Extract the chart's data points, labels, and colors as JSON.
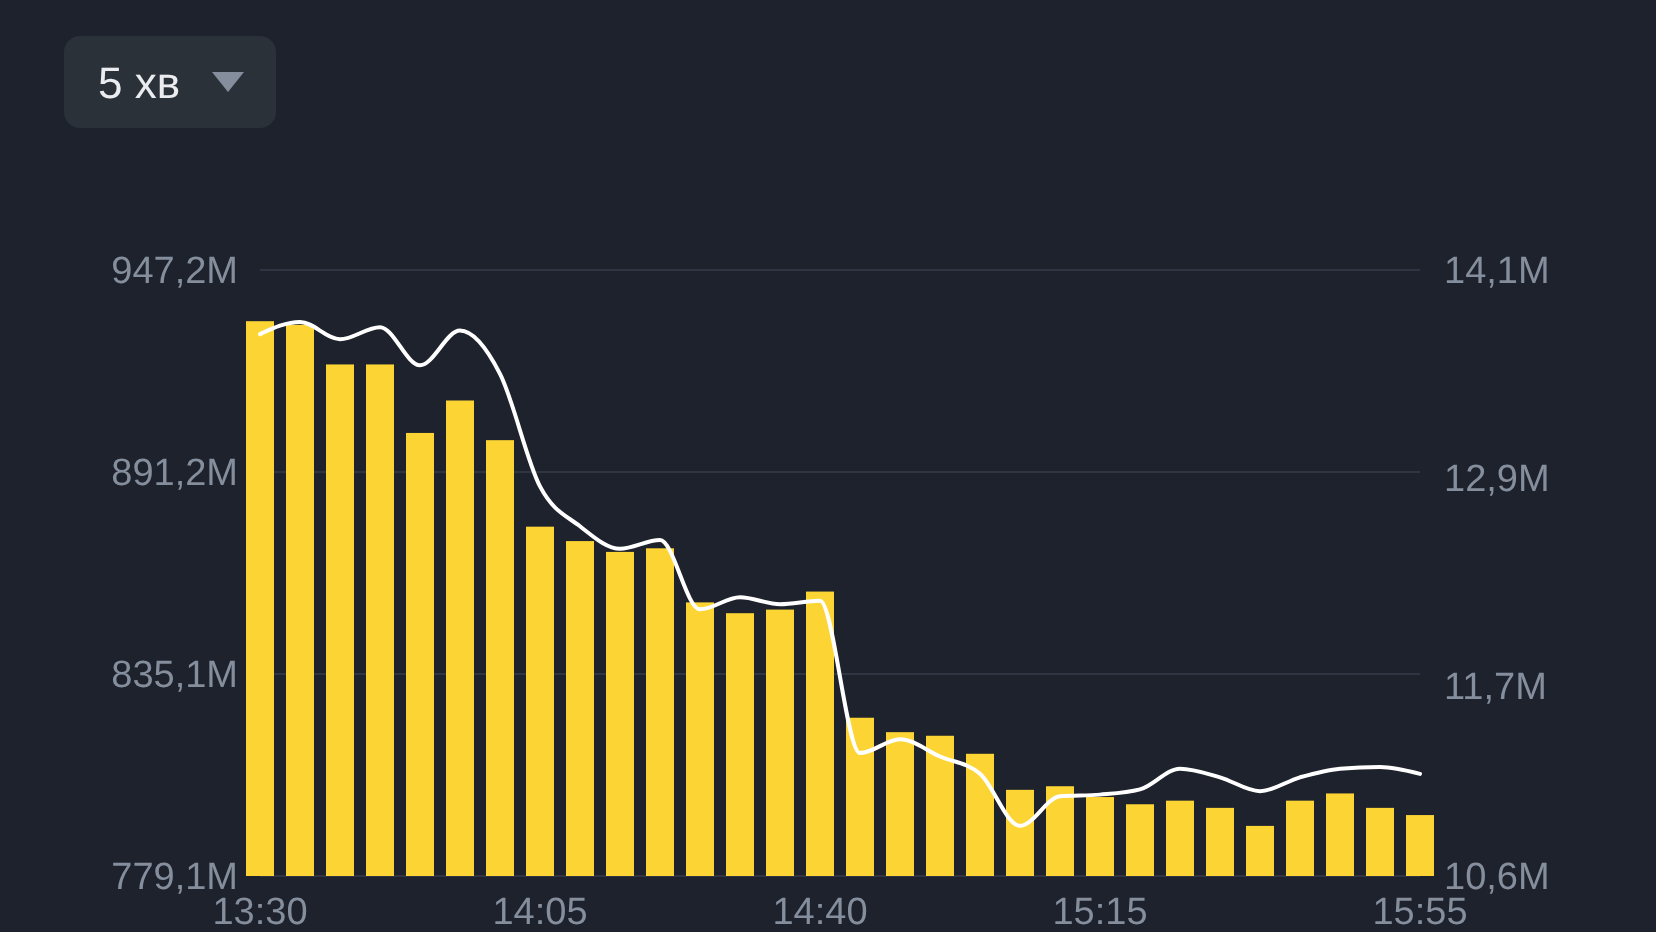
{
  "chart_data": {
    "type": "bar",
    "annotations": [
      "5 хв"
    ],
    "categories": [
      "13:30",
      null,
      null,
      null,
      null,
      null,
      null,
      "14:05",
      null,
      null,
      null,
      null,
      null,
      null,
      "14:40",
      null,
      null,
      null,
      null,
      null,
      null,
      "15:15",
      null,
      null,
      null,
      null,
      null,
      null,
      null,
      "15:55"
    ],
    "series": [
      {
        "color": "#fcd535",
        "values": [
          933,
          932,
          921,
          921,
          902,
          911,
          900,
          876,
          872,
          869,
          870,
          855,
          852,
          853,
          858,
          823,
          819,
          818,
          813,
          803,
          804,
          801,
          799,
          800,
          798,
          793,
          800,
          802,
          798,
          796
        ]
      },
      {
        "type": "line",
        "axis": "y2",
        "color": "#ffffff",
        "values": [
          13.73,
          13.8,
          13.7,
          13.77,
          13.55,
          13.75,
          13.5,
          12.85,
          12.62,
          12.49,
          12.54,
          12.14,
          12.21,
          12.17,
          12.19,
          11.31,
          11.39,
          11.29,
          11.19,
          10.89,
          11.06,
          11.07,
          11.1,
          11.22,
          11.17,
          11.09,
          11.17,
          11.22,
          11.23,
          11.19
        ]
      }
    ],
    "ylim": [
      779.1,
      947.2
    ],
    "yticks": [
      {
        "value": 779.1,
        "label": "779,1M"
      },
      {
        "value": 835.1,
        "label": "835,1M"
      },
      {
        "value": 891.2,
        "label": "891,2M"
      },
      {
        "value": 947.2,
        "label": "947,2M"
      }
    ],
    "y2lim": [
      10.6,
      14.1
    ],
    "y2ticks": [
      {
        "value": 10.6,
        "label": "10,6M"
      },
      {
        "value": 11.7,
        "label": "11,7M"
      },
      {
        "value": 12.9,
        "label": "12,9M"
      },
      {
        "value": 14.1,
        "label": "14,1M"
      }
    ],
    "grid": "y",
    "marker": "none",
    "line_style": "solid"
  }
}
